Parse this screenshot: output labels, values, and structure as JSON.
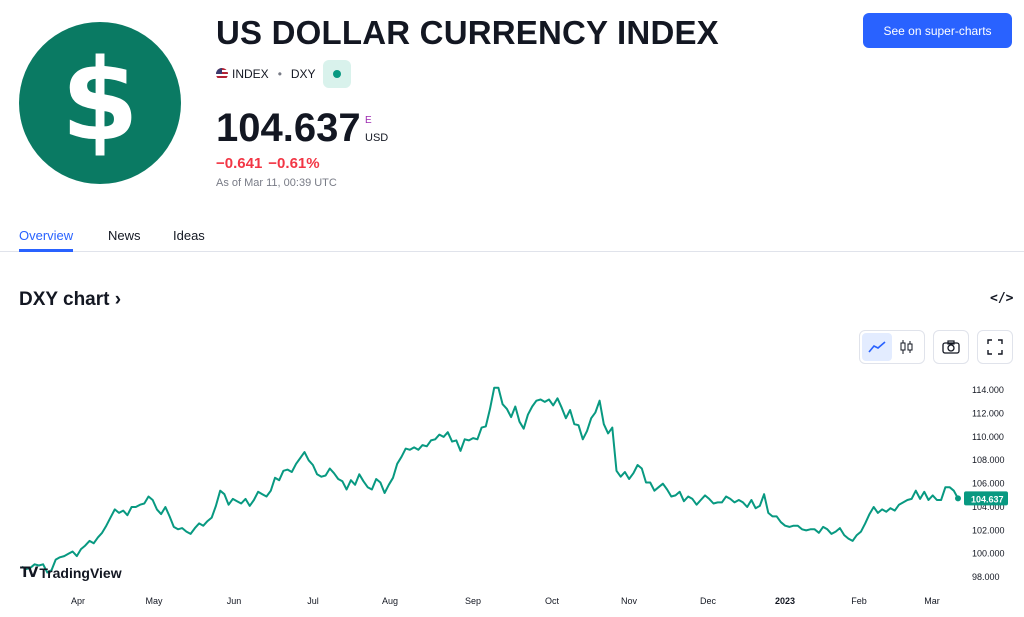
{
  "header": {
    "title": "US DOLLAR CURRENCY INDEX",
    "logo_symbol": "$",
    "market_type": "INDEX",
    "ticker": "DXY",
    "price": "104.637",
    "price_flag": "E",
    "currency": "USD",
    "change_abs": "−0.641",
    "change_pct": "−0.61%",
    "as_of": "As of Mar 11, 00:39 UTC",
    "super_charts_label": "See on super-charts",
    "brand_color": "#0a7a63"
  },
  "tabs": [
    {
      "label": "Overview",
      "active": true
    },
    {
      "label": "News",
      "active": false
    },
    {
      "label": "Ideas",
      "active": false
    }
  ],
  "chart_section": {
    "title": "DXY chart ›",
    "embed_label": "</>",
    "tv_brand": "TradingView"
  },
  "chart_data": {
    "type": "line",
    "line_color": "#089981",
    "last_value_label": "104.637",
    "ylim": [
      97,
      115
    ],
    "y_ticks": [
      "114.000",
      "112.000",
      "110.000",
      "108.000",
      "106.000",
      "104.000",
      "102.000",
      "100.000",
      "98.000"
    ],
    "x_ticks": [
      "Apr",
      "May",
      "Jun",
      "Jul",
      "Aug",
      "Sep",
      "Oct",
      "Nov",
      "Dec",
      "2023",
      "Feb",
      "Mar"
    ],
    "values": [
      98.8,
      98.6,
      98.7,
      99.0,
      98.9,
      99.0,
      98.3,
      98.5,
      99.4,
      99.6,
      99.7,
      99.9,
      100.1,
      99.7,
      100.3,
      100.6,
      101.0,
      100.8,
      101.3,
      101.7,
      102.3,
      103.0,
      103.7,
      103.4,
      103.6,
      103.2,
      103.9,
      103.9,
      104.1,
      104.2,
      104.8,
      104.5,
      103.7,
      103.3,
      103.9,
      103.1,
      102.2,
      102.0,
      102.1,
      101.8,
      101.6,
      102.1,
      102.5,
      102.3,
      102.7,
      103.0,
      104.0,
      105.3,
      105.0,
      104.1,
      104.6,
      104.4,
      104.2,
      104.6,
      104.0,
      104.5,
      105.2,
      105.0,
      104.8,
      105.3,
      106.4,
      106.2,
      107.0,
      107.1,
      106.9,
      107.6,
      108.1,
      108.6,
      107.9,
      107.5,
      106.7,
      106.5,
      106.6,
      107.2,
      106.8,
      106.3,
      106.1,
      105.4,
      106.2,
      105.8,
      106.7,
      106.1,
      105.6,
      105.4,
      106.3,
      106.0,
      105.1,
      105.8,
      106.4,
      107.6,
      108.2,
      108.9,
      108.8,
      109.0,
      108.8,
      109.2,
      109.1,
      109.6,
      109.7,
      110.1,
      109.9,
      110.3,
      109.5,
      109.6,
      108.7,
      109.7,
      109.6,
      109.8,
      109.7,
      110.7,
      110.8,
      112.3,
      114.1,
      114.1,
      112.7,
      112.3,
      111.6,
      112.5,
      111.2,
      110.6,
      111.8,
      112.5,
      113.0,
      113.1,
      112.9,
      113.1,
      112.6,
      113.2,
      112.4,
      111.5,
      112.2,
      111.0,
      110.9,
      109.7,
      110.4,
      111.5,
      112.0,
      113.0,
      111.0,
      110.2,
      110.7,
      107.0,
      106.5,
      106.9,
      106.3,
      106.8,
      107.5,
      107.2,
      106.0,
      106.0,
      105.3,
      105.6,
      105.9,
      105.4,
      104.8,
      104.9,
      105.2,
      104.4,
      104.8,
      104.6,
      104.1,
      104.5,
      104.9,
      104.6,
      104.2,
      104.3,
      104.3,
      104.8,
      104.6,
      104.3,
      104.5,
      104.3,
      103.9,
      104.5,
      103.8,
      104.0,
      105.0,
      103.4,
      103.1,
      103.1,
      102.6,
      102.3,
      102.2,
      102.3,
      102.3,
      102.0,
      101.9,
      102.0,
      102.0,
      101.7,
      102.2,
      102.0,
      101.6,
      101.8,
      102.1,
      101.5,
      101.2,
      101.0,
      101.5,
      101.8,
      102.5,
      103.3,
      103.9,
      103.4,
      103.7,
      103.5,
      103.8,
      103.6,
      104.1,
      104.3,
      104.5,
      104.6,
      105.3,
      104.6,
      105.2,
      104.5,
      104.9,
      104.5,
      104.5,
      105.6,
      105.6,
      105.3,
      104.637
    ]
  }
}
